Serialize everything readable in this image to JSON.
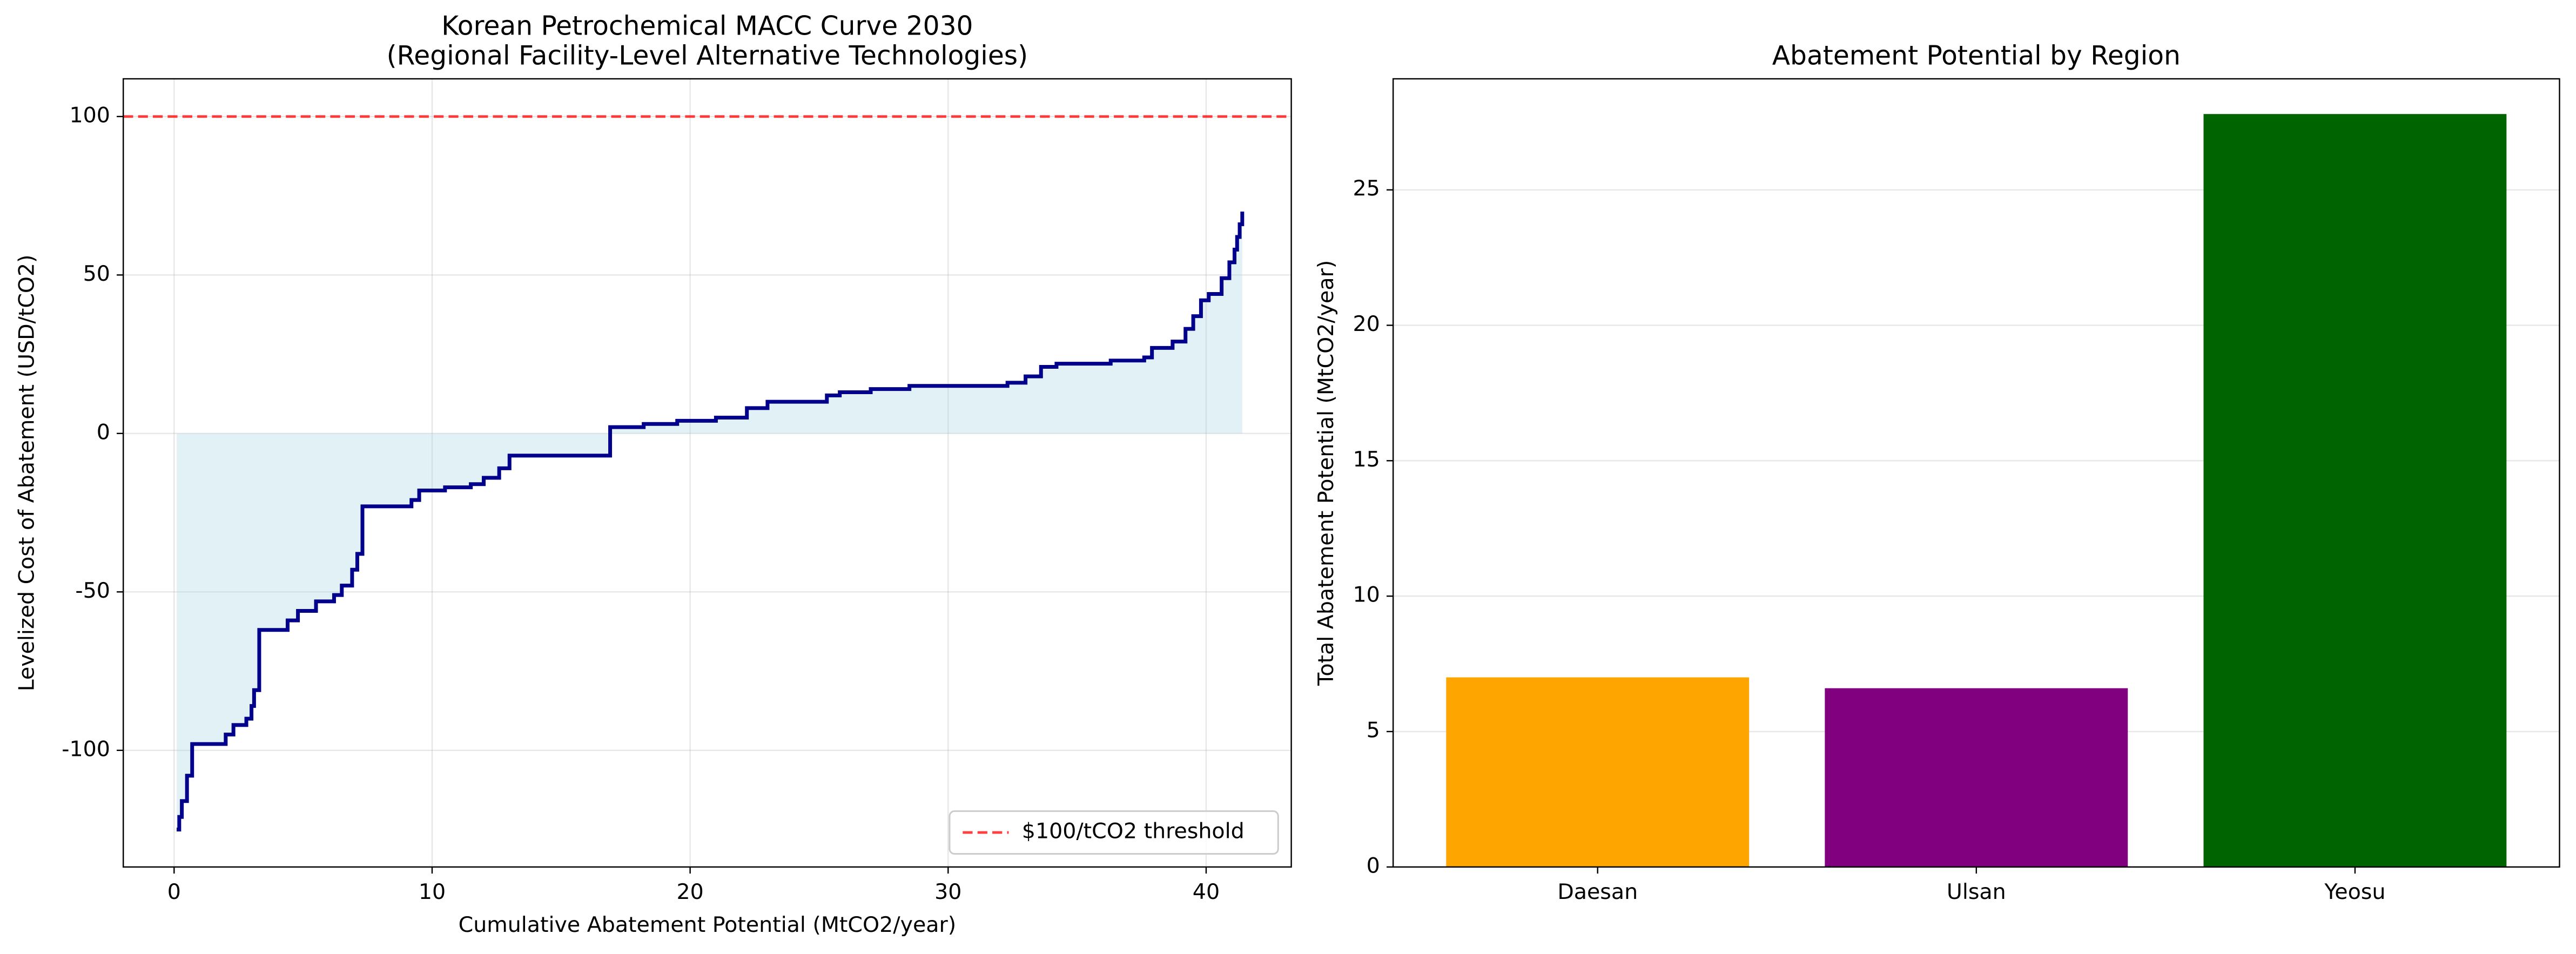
{
  "chart_data": [
    {
      "type": "step",
      "title": [
        "Korean Petrochemical MACC Curve 2030",
        "(Regional Facility-Level Alternative Technologies)"
      ],
      "xlabel": "Cumulative Abatement Potential (MtCO2/year)",
      "ylabel": "Levelized Cost of Abatement (USD/tCO2)",
      "x": [
        0.1,
        0.2,
        0.3,
        0.5,
        0.7,
        2.0,
        2.3,
        2.8,
        3.0,
        3.1,
        3.3,
        4.4,
        4.8,
        5.5,
        6.2,
        6.5,
        6.9,
        7.1,
        7.3,
        9.2,
        9.5,
        10.5,
        11.5,
        12.0,
        12.6,
        13.0,
        16.9,
        18.2,
        19.5,
        21.0,
        22.2,
        23.0,
        25.3,
        25.8,
        27.0,
        28.5,
        32.3,
        33.0,
        33.6,
        34.2,
        36.3,
        37.6,
        37.9,
        38.7,
        39.2,
        39.5,
        39.8,
        40.1,
        40.6,
        40.9,
        41.1,
        41.2,
        41.3,
        41.4
      ],
      "series": [
        {
          "color": "#00008b",
          "fill": "#add8e6",
          "values": [
            -125,
            -121,
            -116,
            -108,
            -98,
            -95,
            -92,
            -90,
            -86,
            -81,
            -62,
            -59,
            -56,
            -53,
            -51,
            -48,
            -43,
            -38,
            -23,
            -21,
            -18,
            -17,
            -16,
            -14,
            -11,
            -7,
            2,
            3,
            4,
            5,
            8,
            10,
            12,
            13,
            14,
            15,
            16,
            18,
            21,
            22,
            23,
            24,
            27,
            29,
            33,
            37,
            42,
            44,
            49,
            54,
            58,
            62,
            66,
            70
          ]
        }
      ],
      "hline": {
        "value": 100,
        "color": "#ff0000",
        "name": "$100/tCO2 threshold"
      },
      "xlim": [
        -1.97,
        43.3
      ],
      "xticks": [
        0,
        10,
        20,
        30,
        40
      ],
      "ylim": [
        -136.8,
        111.9
      ],
      "yticks": [
        -100,
        -50,
        0,
        50,
        100
      ],
      "grid": true,
      "legend": "lower right"
    },
    {
      "type": "bar",
      "title": "Abatement Potential by Region",
      "ylabel": "Total Abatement Potential (MtCO2/year)",
      "categories": [
        "Daesan",
        "Ulsan",
        "Yeosu"
      ],
      "values": [
        7.0,
        6.6,
        27.8
      ],
      "colors": [
        "#ffa500",
        "#800080",
        "#006400"
      ],
      "ylim": [
        0,
        29.1
      ],
      "yticks": [
        0,
        5,
        10,
        15,
        20,
        25
      ],
      "grid": true
    }
  ]
}
